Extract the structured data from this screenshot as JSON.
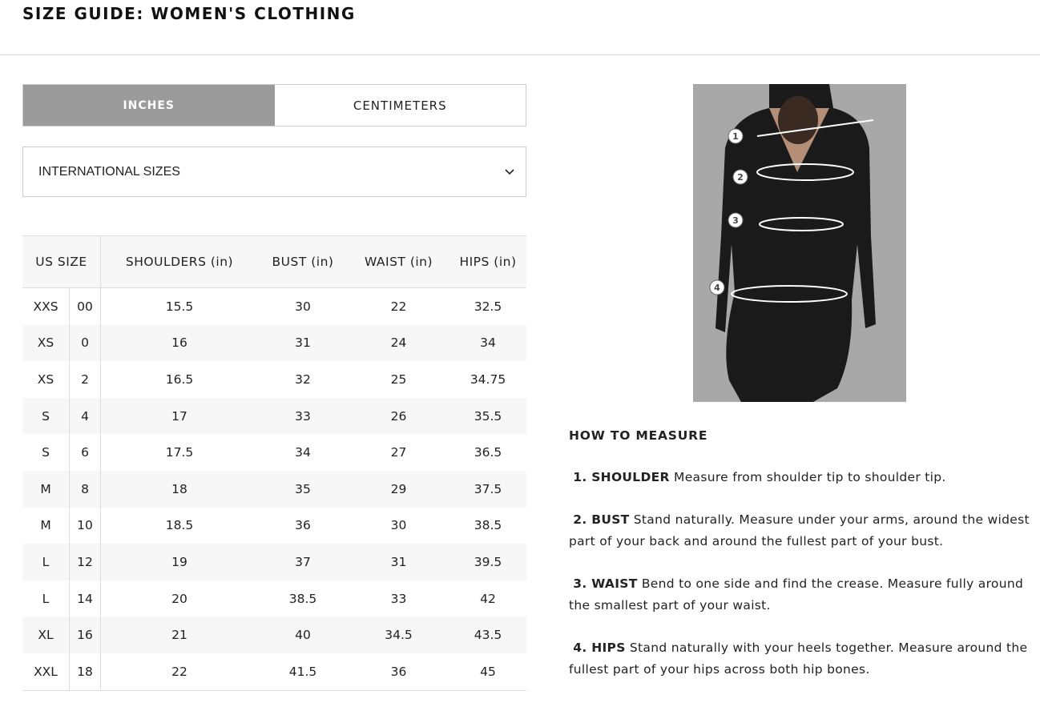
{
  "title": "SIZE GUIDE: WOMEN'S CLOTHING",
  "units": {
    "inches": "INCHES",
    "centimeters": "CENTIMETERS",
    "selected": "INCHES"
  },
  "size_select": {
    "value": "INTERNATIONAL SIZES"
  },
  "table": {
    "headers": [
      "US SIZE",
      "SHOULDERS (in)",
      "BUST (in)",
      "WAIST (in)",
      "HIPS (in)"
    ],
    "rows": [
      [
        "XXS",
        "00",
        "15.5",
        "30",
        "22",
        "32.5"
      ],
      [
        "XS",
        "0",
        "16",
        "31",
        "24",
        "34"
      ],
      [
        "XS",
        "2",
        "16.5",
        "32",
        "25",
        "34.75"
      ],
      [
        "S",
        "4",
        "17",
        "33",
        "26",
        "35.5"
      ],
      [
        "S",
        "6",
        "17.5",
        "34",
        "27",
        "36.5"
      ],
      [
        "M",
        "8",
        "18",
        "35",
        "29",
        "37.5"
      ],
      [
        "M",
        "10",
        "18.5",
        "36",
        "30",
        "38.5"
      ],
      [
        "L",
        "12",
        "19",
        "37",
        "31",
        "39.5"
      ],
      [
        "L",
        "14",
        "20",
        "38.5",
        "33",
        "42"
      ],
      [
        "XL",
        "16",
        "21",
        "40",
        "34.5",
        "43.5"
      ],
      [
        "XXL",
        "18",
        "22",
        "41.5",
        "36",
        "45"
      ]
    ]
  },
  "diagram": {
    "markers": [
      "1",
      "2",
      "3",
      "4"
    ]
  },
  "how_to": {
    "heading": "HOW TO MEASURE",
    "items": [
      {
        "label": "1. SHOULDER",
        "text": "Measure from shoulder tip to shoulder tip."
      },
      {
        "label": "2. BUST",
        "text": "Stand naturally. Measure under your arms, around the widest part of your back and around the fullest part of your bust."
      },
      {
        "label": "3. WAIST",
        "text": "Bend to one side and find the crease. Measure fully around the smallest part of your waist."
      },
      {
        "label": "4. HIPS",
        "text": "Stand naturally with your heels together. Measure around the fullest part of your hips across both hip bones."
      }
    ]
  }
}
